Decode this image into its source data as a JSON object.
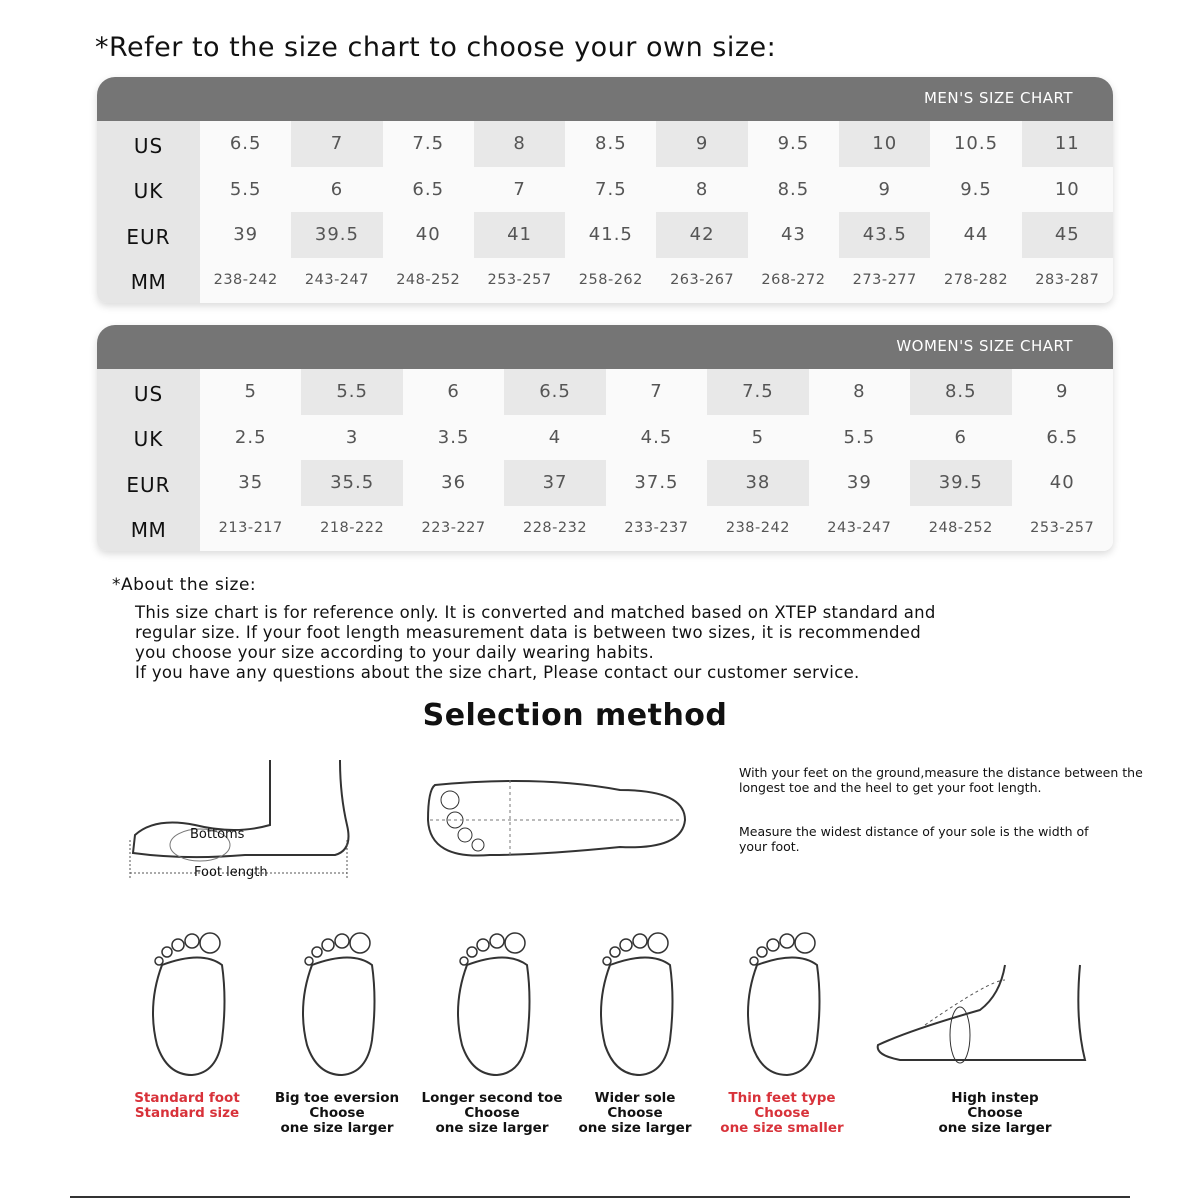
{
  "title": "*Refer to the size chart to choose your own size:",
  "mens": {
    "heading": "MEN'S SIZE CHART",
    "rows": [
      {
        "label": "US",
        "values": [
          "6.5",
          "7",
          "7.5",
          "8",
          "8.5",
          "9",
          "9.5",
          "10",
          "10.5",
          "11"
        ]
      },
      {
        "label": "UK",
        "values": [
          "5.5",
          "6",
          "6.5",
          "7",
          "7.5",
          "8",
          "8.5",
          "9",
          "9.5",
          "10"
        ]
      },
      {
        "label": "EUR",
        "values": [
          "39",
          "39.5",
          "40",
          "41",
          "41.5",
          "42",
          "43",
          "43.5",
          "44",
          "45"
        ]
      },
      {
        "label": "MM",
        "values": [
          "238-242",
          "243-247",
          "248-252",
          "253-257",
          "258-262",
          "263-267",
          "268-272",
          "273-277",
          "278-282",
          "283-287"
        ]
      }
    ]
  },
  "womens": {
    "heading": "WOMEN'S SIZE CHART",
    "rows": [
      {
        "label": "US",
        "values": [
          "5",
          "5.5",
          "6",
          "6.5",
          "7",
          "7.5",
          "8",
          "8.5",
          "9"
        ]
      },
      {
        "label": "UK",
        "values": [
          "2.5",
          "3",
          "3.5",
          "4",
          "4.5",
          "5",
          "5.5",
          "6",
          "6.5"
        ]
      },
      {
        "label": "EUR",
        "values": [
          "35",
          "35.5",
          "36",
          "37",
          "37.5",
          "38",
          "39",
          "39.5",
          "40"
        ]
      },
      {
        "label": "MM",
        "values": [
          "213-217",
          "218-222",
          "223-227",
          "228-232",
          "233-237",
          "238-242",
          "243-247",
          "248-252",
          "253-257"
        ]
      }
    ]
  },
  "about": {
    "heading": "*About the size:",
    "lines": [
      "This size chart is for reference only. It is converted and matched based on XTEP standard and",
      "regular size. If your foot length measurement data is between two sizes, it is recommended",
      "you choose your size according to your daily wearing habits.",
      "If you have any questions about the size chart, Please contact our customer service."
    ]
  },
  "selection": {
    "title": "Selection method",
    "bottoms_label": "Bottoms",
    "foot_length_label": "Foot length",
    "length_text": "With your feet on the ground,measure the distance between the longest toe and the heel to get your foot length.",
    "width_text": "Measure the widest distance of your sole is the width of your foot.",
    "types": [
      {
        "lines": [
          "Standard foot",
          "Standard size"
        ],
        "highlight": true
      },
      {
        "lines": [
          "Big toe eversion",
          "Choose",
          "one size larger"
        ],
        "highlight": false
      },
      {
        "lines": [
          "Longer second toe",
          "Choose",
          "one size larger"
        ],
        "highlight": false
      },
      {
        "lines": [
          "Wider sole",
          "Choose",
          "one size larger"
        ],
        "highlight": false
      },
      {
        "lines": [
          "Thin feet type",
          "Choose",
          "one size smaller"
        ],
        "highlight": true
      },
      {
        "lines": [
          "High instep",
          "Choose",
          "one size larger"
        ],
        "highlight": false
      }
    ]
  },
  "colors": {
    "header": "#757575",
    "highlight": "#d8323a"
  }
}
